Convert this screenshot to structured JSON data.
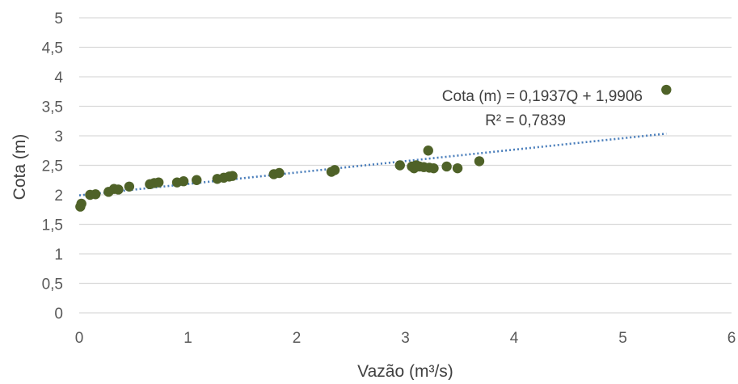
{
  "chart_data": {
    "type": "scatter",
    "xlabel": "Vazão (m³/s)",
    "ylabel": "Cota (m)",
    "xlim": [
      0,
      6
    ],
    "ylim": [
      0,
      5
    ],
    "x_ticks": [
      "0",
      "1",
      "2",
      "3",
      "4",
      "5",
      "6"
    ],
    "y_ticks": [
      "0",
      "0,5",
      "1",
      "1,5",
      "2",
      "2,5",
      "3",
      "3,5",
      "4",
      "4,5",
      "5"
    ],
    "grid": "horizontal",
    "legend": "none",
    "point_color": "#4f6228",
    "trendline_color": "#4a7ebb",
    "trendline": {
      "type": "linear",
      "slope": 0.1937,
      "intercept": 1.9906,
      "x_range": [
        0,
        5.4
      ],
      "equation_label": "Cota (m) = 0,1937Q + 1,9906",
      "r2_label": "R² = 0,7839"
    },
    "points": [
      {
        "x": 0.01,
        "y": 1.8
      },
      {
        "x": 0.02,
        "y": 1.85
      },
      {
        "x": 0.1,
        "y": 2.0
      },
      {
        "x": 0.15,
        "y": 2.01
      },
      {
        "x": 0.27,
        "y": 2.05
      },
      {
        "x": 0.32,
        "y": 2.1
      },
      {
        "x": 0.36,
        "y": 2.09
      },
      {
        "x": 0.46,
        "y": 2.14
      },
      {
        "x": 0.65,
        "y": 2.18
      },
      {
        "x": 0.69,
        "y": 2.2
      },
      {
        "x": 0.73,
        "y": 2.21
      },
      {
        "x": 0.9,
        "y": 2.21
      },
      {
        "x": 0.96,
        "y": 2.23
      },
      {
        "x": 1.08,
        "y": 2.25
      },
      {
        "x": 1.27,
        "y": 2.27
      },
      {
        "x": 1.33,
        "y": 2.29
      },
      {
        "x": 1.38,
        "y": 2.31
      },
      {
        "x": 1.41,
        "y": 2.32
      },
      {
        "x": 1.79,
        "y": 2.35
      },
      {
        "x": 1.84,
        "y": 2.37
      },
      {
        "x": 2.32,
        "y": 2.39
      },
      {
        "x": 2.35,
        "y": 2.42
      },
      {
        "x": 2.95,
        "y": 2.5
      },
      {
        "x": 3.06,
        "y": 2.48
      },
      {
        "x": 3.08,
        "y": 2.45
      },
      {
        "x": 3.1,
        "y": 2.5
      },
      {
        "x": 3.13,
        "y": 2.48
      },
      {
        "x": 3.17,
        "y": 2.47
      },
      {
        "x": 3.21,
        "y": 2.75
      },
      {
        "x": 3.22,
        "y": 2.46
      },
      {
        "x": 3.26,
        "y": 2.45
      },
      {
        "x": 3.38,
        "y": 2.48
      },
      {
        "x": 3.48,
        "y": 2.45
      },
      {
        "x": 3.68,
        "y": 2.57
      },
      {
        "x": 5.4,
        "y": 3.78
      }
    ]
  }
}
